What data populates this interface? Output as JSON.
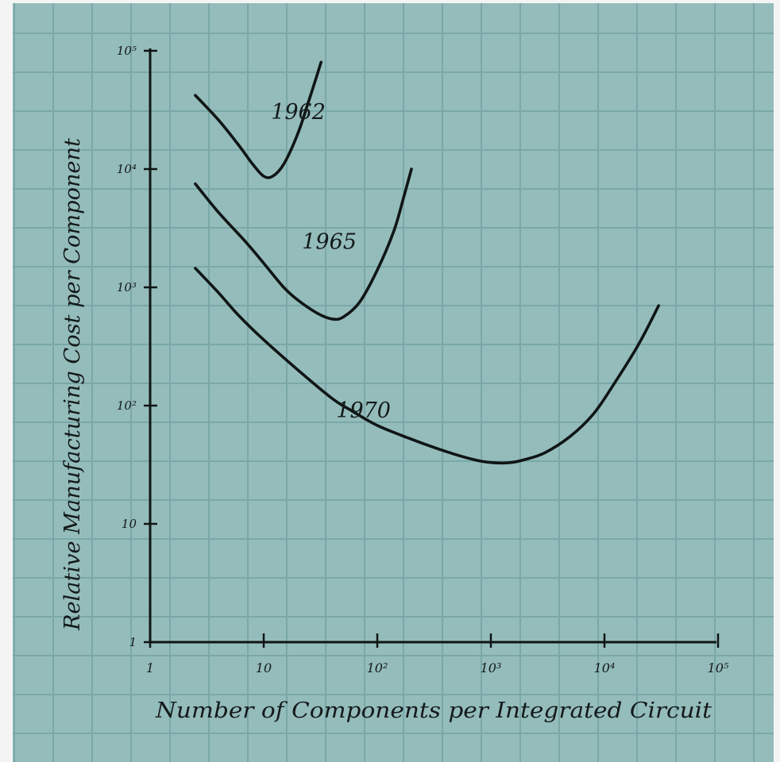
{
  "colors": {
    "paper": "#94bcbb",
    "grid": "#7aa8a8",
    "ink": "#101515",
    "border": "#f4f4f4"
  },
  "chart_data": {
    "type": "line",
    "xscale": "log",
    "yscale": "log",
    "xlim": [
      1,
      100000
    ],
    "ylim": [
      1,
      100000
    ],
    "grid": true,
    "legend": "none",
    "xlabel": "Number of Components per Integrated Circuit",
    "ylabel": "Relative Manufacturing Cost per Component",
    "x_ticks": [
      {
        "value": 1,
        "label": "1"
      },
      {
        "value": 10,
        "label": "10"
      },
      {
        "value": 100,
        "label": "10²"
      },
      {
        "value": 1000,
        "label": "10³"
      },
      {
        "value": 10000,
        "label": "10⁴"
      },
      {
        "value": 100000,
        "label": "10⁵"
      }
    ],
    "y_ticks": [
      {
        "value": 1,
        "label": "1"
      },
      {
        "value": 10,
        "label": "10"
      },
      {
        "value": 100,
        "label": "10²"
      },
      {
        "value": 1000,
        "label": "10³"
      },
      {
        "value": 10000,
        "label": "10⁴"
      },
      {
        "value": 100000,
        "label": "10⁵"
      }
    ],
    "series": [
      {
        "name": "1962",
        "x": [
          2.5,
          4,
          6,
          8,
          10,
          12,
          15,
          20,
          25,
          32
        ],
        "y": [
          42000,
          26000,
          16000,
          11000,
          8700,
          8700,
          11000,
          20000,
          38000,
          80000
        ]
      },
      {
        "name": "1965",
        "x": [
          2.5,
          4,
          7,
          10,
          15,
          20,
          30,
          40,
          50,
          70,
          100,
          140,
          170,
          200
        ],
        "y": [
          7500,
          4300,
          2400,
          1600,
          1000,
          780,
          600,
          540,
          560,
          750,
          1400,
          3000,
          5700,
          10000
        ]
      },
      {
        "name": "1970",
        "x": [
          2.5,
          4,
          6,
          10,
          20,
          40,
          60,
          100,
          200,
          400,
          700,
          1000,
          1500,
          2000,
          3000,
          5000,
          8000,
          12000,
          20000,
          30000
        ],
        "y": [
          1450,
          900,
          580,
          360,
          200,
          115,
          90,
          68,
          52,
          41,
          35,
          33,
          33,
          35,
          40,
          55,
          85,
          150,
          330,
          700
        ]
      }
    ]
  }
}
